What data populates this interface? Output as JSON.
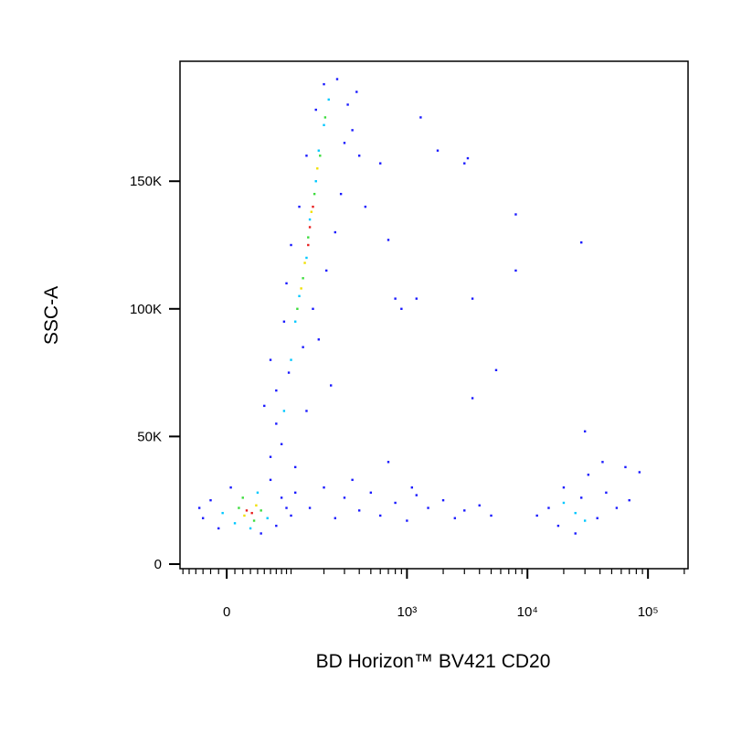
{
  "chart_data": {
    "type": "scatter",
    "x_label": "BD Horizon™ BV421 CD20",
    "y_label": "SSC-A",
    "xscale": "asinh",
    "xlim": [
      -65,
      215000
    ],
    "ylim": [
      -1800,
      197000
    ],
    "xticks": [
      0,
      {
        "value": 1000,
        "label": "10³"
      },
      {
        "value": 10000,
        "label": "10⁴"
      },
      {
        "value": 100000,
        "label": "10⁵"
      }
    ],
    "xminorticks": [
      -60,
      -50,
      -40,
      -30,
      -20,
      -10,
      10,
      20,
      30,
      40,
      50,
      60,
      70,
      80,
      90,
      100,
      200,
      300,
      400,
      500,
      600,
      700,
      800,
      900,
      2000,
      3000,
      4000,
      5000,
      6000,
      7000,
      8000,
      9000,
      20000,
      30000,
      40000,
      50000,
      60000,
      70000,
      80000,
      90000,
      200000
    ],
    "yticks": [
      0,
      {
        "value": 50000,
        "label": "50K"
      },
      {
        "value": 100000,
        "label": "100K"
      },
      {
        "value": 150000,
        "label": "150K"
      }
    ],
    "series": [
      {
        "color": "#1a1aff",
        "x": [
          -30,
          -20,
          -10,
          5,
          70,
          80,
          90,
          60,
          -35,
          45,
          100,
          110,
          60,
          70,
          80,
          110,
          70,
          95,
          140,
          130,
          85,
          160,
          90,
          210,
          100,
          250,
          120,
          280,
          140,
          300,
          170,
          320,
          200,
          260,
          350,
          400,
          450,
          380,
          180,
          230,
          60,
          50,
          150,
          200,
          250,
          300,
          400,
          500,
          600,
          800,
          1000,
          1200,
          1500,
          2000,
          2500,
          3000,
          4000,
          5000,
          700,
          1100,
          350,
          15000,
          18000,
          20000,
          25000,
          28000,
          32000,
          38000,
          45000,
          55000,
          65000,
          12000,
          42000,
          70000,
          85000,
          30000,
          1300,
          1800,
          3000,
          3200,
          8000,
          28000,
          8000,
          3500,
          5500,
          3500,
          800,
          600,
          700,
          1200,
          900
        ],
        "y": [
          18000,
          25000,
          14000,
          30000,
          15000,
          26000,
          22000,
          33000,
          22000,
          12000,
          19000,
          28000,
          42000,
          55000,
          47000,
          38000,
          68000,
          75000,
          60000,
          85000,
          95000,
          100000,
          110000,
          115000,
          125000,
          130000,
          140000,
          145000,
          160000,
          165000,
          178000,
          180000,
          188000,
          190000,
          170000,
          160000,
          140000,
          185000,
          88000,
          70000,
          80000,
          62000,
          22000,
          30000,
          18000,
          26000,
          21000,
          28000,
          19000,
          24000,
          17000,
          27000,
          22000,
          25000,
          18000,
          21000,
          23000,
          19000,
          40000,
          30000,
          33000,
          22000,
          15000,
          30000,
          12000,
          26000,
          35000,
          18000,
          28000,
          22000,
          38000,
          19000,
          40000,
          25000,
          36000,
          52000,
          175000,
          162000,
          157000,
          159000,
          137000,
          126000,
          115000,
          104000,
          76000,
          65000,
          104000,
          157000,
          127000,
          104000,
          100000
        ]
      },
      {
        "color": "#00c8ff",
        "x": [
          10,
          40,
          -5,
          55,
          30,
          85,
          100,
          110,
          120,
          140,
          150,
          170,
          180,
          200,
          220,
          25000,
          30000,
          20000
        ],
        "y": [
          16000,
          28000,
          20000,
          18000,
          14000,
          60000,
          80000,
          95000,
          105000,
          120000,
          135000,
          150000,
          162000,
          172000,
          182000,
          20000,
          17000,
          24000
        ]
      },
      {
        "color": "#3cdc3c",
        "x": [
          15,
          35,
          20,
          45,
          115,
          130,
          145,
          165,
          185,
          205
        ],
        "y": [
          22000,
          17000,
          26000,
          21000,
          100000,
          112000,
          128000,
          145000,
          160000,
          175000
        ]
      },
      {
        "color": "#f0e000",
        "x": [
          22,
          38,
          135,
          155,
          175,
          125
        ],
        "y": [
          19000,
          23000,
          118000,
          138000,
          155000,
          108000
        ]
      },
      {
        "color": "#e82020",
        "x": [
          25,
          32,
          145,
          160,
          150
        ],
        "y": [
          21000,
          20000,
          125000,
          140000,
          132000
        ]
      }
    ]
  }
}
